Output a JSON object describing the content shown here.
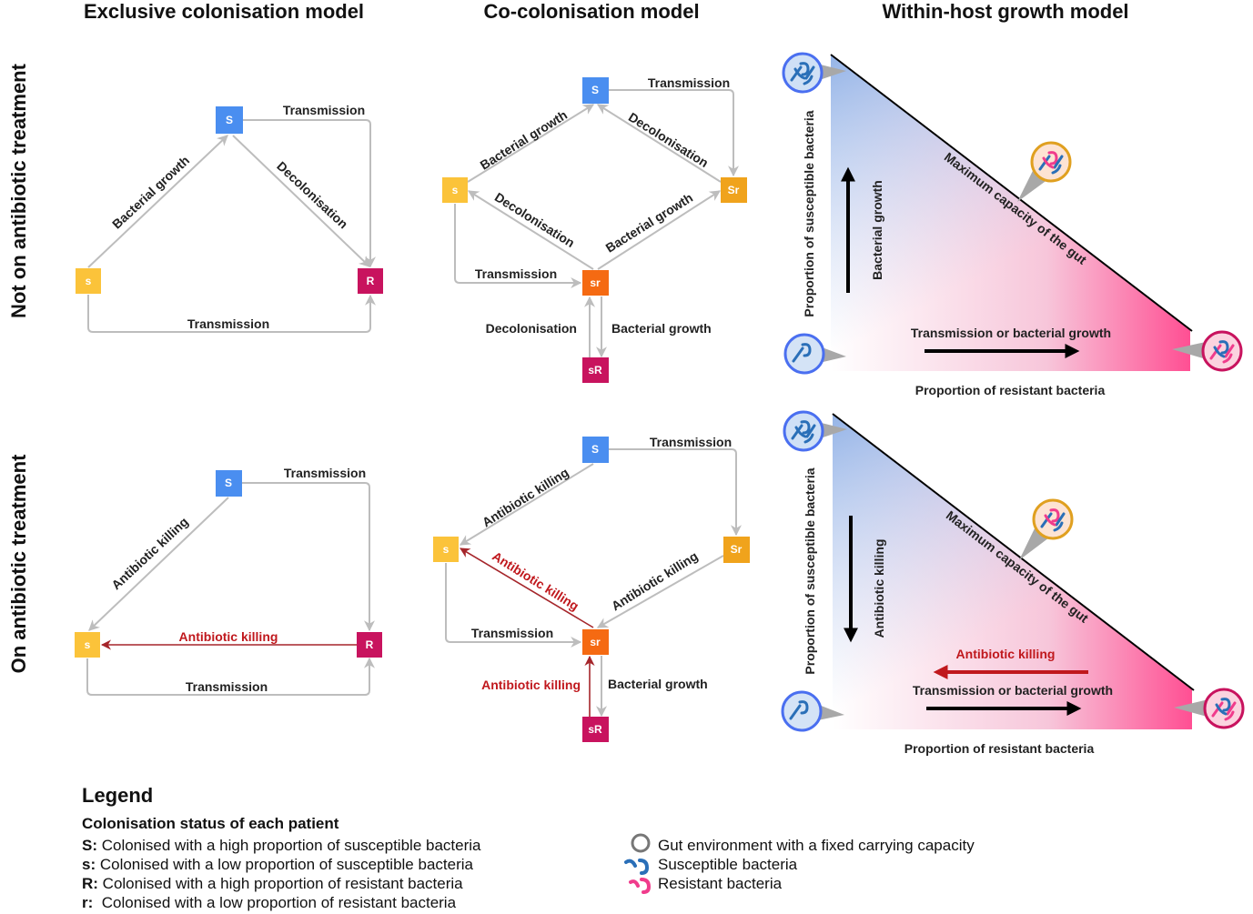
{
  "column_titles": [
    "Exclusive colonisation model",
    "Co-colonisation model",
    "Within-host growth model"
  ],
  "row_labels": [
    "Not on antibiotic treatment",
    "On antibiotic treatment"
  ],
  "nodes": {
    "S": "S",
    "s": "s",
    "R": "R",
    "Sr": "Sr",
    "sr": "sr",
    "sR": "sR"
  },
  "colors": {
    "S": "#4a8ef0",
    "s": "#fbc33a",
    "R": "#c8135e",
    "Sr": "#f0a31c",
    "sr": "#f56a12",
    "sR": "#c8135e",
    "arrow": "#bdbdbd",
    "antibiotic": "#c0181d",
    "resistant_fill": "#ff4f93",
    "susceptible_fill": "#8fb0e6"
  },
  "edge_labels": {
    "transmission": "Transmission",
    "bacterial_growth": "Bacterial growth",
    "decolonisation": "Decolonisation",
    "antibiotic_killing": "Antibiotic killing",
    "transmission_or_growth": "Transmission or bacterial growth"
  },
  "growth_panel": {
    "y_axis": "Proportion of susceptible bacteria",
    "x_axis": "Proportion of resistant bacteria",
    "capacity": "Maximum capacity of the gut"
  },
  "legend": {
    "title": "Legend",
    "subtitle": "Colonisation status of each patient",
    "items": [
      {
        "key": "S:",
        "text": " Colonised with a high proportion of susceptible bacteria"
      },
      {
        "key": "s:",
        "text": " Colonised with a low proportion of susceptible bacteria"
      },
      {
        "key": "R:",
        "text": " Colonised with a high proportion of resistant bacteria"
      },
      {
        "key": "r:",
        "text": "  Colonised with a low proportion of resistant bacteria"
      }
    ],
    "icons": [
      {
        "icon": "gut-circle-icon",
        "text": "Gut environment with a fixed carrying capacity"
      },
      {
        "icon": "susceptible-bacteria-icon",
        "text": "Susceptible bacteria"
      },
      {
        "icon": "resistant-bacteria-icon",
        "text": "Resistant bacteria"
      }
    ]
  }
}
